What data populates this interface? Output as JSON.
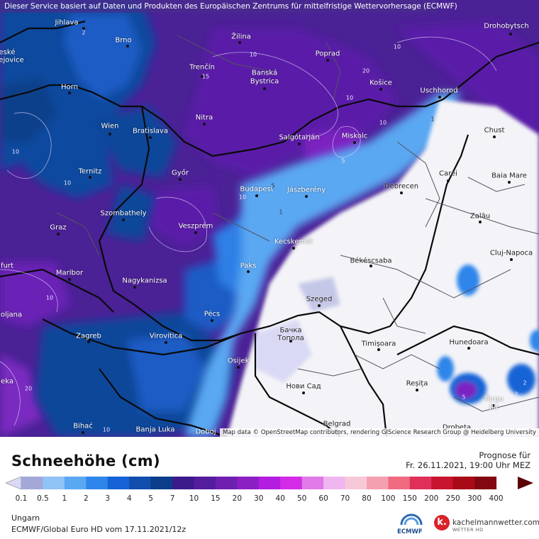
{
  "banner": "Dieser Service basiert auf Daten und Produkten des Europäischen Zentrums für mittelfristige Wettervorhersage (ECMWF)",
  "attribution": "Map data © OpenStreetMap contributors, rendering GIScience Research Group @ Heidelberg University",
  "cities": {
    "jihlava": "Jihlava",
    "brno": "Brno",
    "zilina": "Žilina",
    "poprad": "Poprad",
    "drohobytsch": "Drohobytsch",
    "ceske": "eské",
    "jovice": "ejovice",
    "trencin": "Trenčín",
    "banska": "Banská",
    "bystrica": "Bystrica",
    "kosice": "Košice",
    "horn": "Horn",
    "uschhorod": "Uschhorod",
    "nitra": "Nitra",
    "wien": "Wien",
    "bratislava": "Bratislava",
    "salgotarjan": "Salgótarján",
    "miskolc": "Miskolc",
    "chust": "Chust",
    "ternitz": "Ternitz",
    "gyor": "Győr",
    "carei": "Carei",
    "baia_mare": "Baia Mare",
    "budapest": "Budapest",
    "jaszbereny": "Jászberény",
    "debrecen": "Debrecen",
    "szombathely": "Szombathely",
    "zalau": "Zalău",
    "graz": "Graz",
    "veszprem": "Veszprém",
    "kecskemet": "Kecskemét",
    "cluj": "Cluj-Napoca",
    "furt": "furt",
    "maribor": "Maribor",
    "paks": "Paks",
    "bekescsaba": "Békéscsaba",
    "nagykanizsa": "Nagykanizsa",
    "szeged": "Szeged",
    "ljubljana": "oljana",
    "pecs": "Pécs",
    "backa": "Бачка",
    "topola": "Топола",
    "zagreb": "Zagreb",
    "virovitica": "Virovitica",
    "timisoara": "Timișoara",
    "hunedoara": "Hunedoara",
    "osijek": "Osijek",
    "resita": "Reșița",
    "eka": "eka",
    "novisad": "Нови Сад",
    "targu": "Târgu",
    "jiu": "Jiu",
    "bihac": "Bihać",
    "banjaluka": "Banja Luka",
    "doboj": "Doboj",
    "belgrad": "Belgrad",
    "drobeta": "Drobeta"
  },
  "isolines": [
    "2",
    "10",
    "10",
    "20",
    "10",
    "10",
    "10",
    "5",
    "10",
    "10",
    "10",
    "10",
    "5",
    "1",
    "1",
    "2",
    "5",
    "20",
    "15",
    "2"
  ],
  "legend": {
    "title": "Schneehöhe (cm)",
    "prognose_label": "Prognose für",
    "prognose_date": "Fr. 26.11.2021, 19:00 Uhr MEZ",
    "region": "Ungarn",
    "model": "ECMWF/Global Euro HD vom  17.11.2021/12z",
    "ticks": [
      "0.1",
      "0.5",
      "1",
      "2",
      "3",
      "4",
      "5",
      "7",
      "10",
      "15",
      "20",
      "30",
      "40",
      "50",
      "60",
      "70",
      "80",
      "100",
      "150",
      "200",
      "250",
      "300",
      "400"
    ],
    "colors": [
      "#d9d9f5",
      "#a3a8d8",
      "#8fc2f5",
      "#5aa7f2",
      "#2e85ea",
      "#1563d6",
      "#104dac",
      "#0c3d8a",
      "#3b1a8c",
      "#541d9e",
      "#6e1fb0",
      "#8c1fc4",
      "#b21ddf",
      "#d32be6",
      "#e07ae8",
      "#f0b6f0",
      "#f7c9d8",
      "#f5a0b0",
      "#f06a80",
      "#e0305a",
      "#c8142e",
      "#a80a16",
      "#820710",
      "#5a0408"
    ]
  },
  "logos": {
    "ecmwf": "ECMWF",
    "km_letter": "k.",
    "km_name": "kachelmannwetter.com",
    "km_sub": "WETTER HD"
  }
}
